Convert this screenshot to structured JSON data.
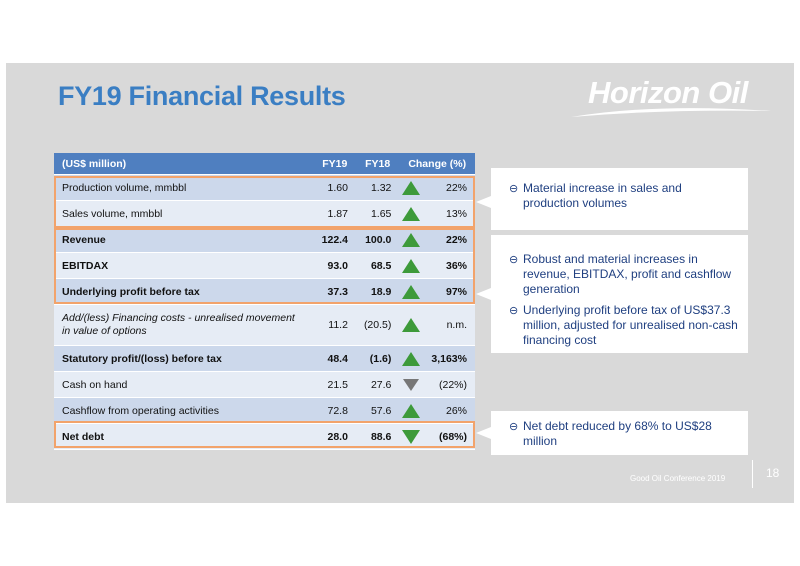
{
  "title": "FY19 Financial Results",
  "logo": {
    "text": "Horizon Oil"
  },
  "table": {
    "headers": [
      "(US$ million)",
      "FY19",
      "FY18",
      "Change (%)"
    ],
    "rows": [
      {
        "label": "Production volume, mmbbl",
        "fy19": "1.60",
        "fy18": "1.32",
        "arrow": "up",
        "change": "22%"
      },
      {
        "label": "Sales volume, mmbbl",
        "fy19": "1.87",
        "fy18": "1.65",
        "arrow": "up",
        "change": "13%"
      },
      {
        "label": "Revenue",
        "fy19": "122.4",
        "fy18": "100.0",
        "arrow": "up",
        "change": "22%"
      },
      {
        "label": "EBITDAX",
        "fy19": "93.0",
        "fy18": "68.5",
        "arrow": "up",
        "change": "36%"
      },
      {
        "label": "Underlying profit before tax",
        "fy19": "37.3",
        "fy18": "18.9",
        "arrow": "up",
        "change": "97%"
      },
      {
        "label": "Add/(less) Financing costs - unrealised movement in value of options",
        "fy19": "11.2",
        "fy18": "(20.5)",
        "arrow": "up",
        "change": "n.m."
      },
      {
        "label": "Statutory profit/(loss) before tax",
        "fy19": "48.4",
        "fy18": "(1.6)",
        "arrow": "up",
        "change": "3,163%"
      },
      {
        "label": "Cash on hand",
        "fy19": "21.5",
        "fy18": "27.6",
        "arrow": "down-grey",
        "change": "(22%)"
      },
      {
        "label": "Cashflow from operating activities",
        "fy19": "72.8",
        "fy18": "57.6",
        "arrow": "up",
        "change": "26%"
      },
      {
        "label": "Net debt",
        "fy19": "28.0",
        "fy18": "88.6",
        "arrow": "down-green",
        "change": "(68%)"
      }
    ]
  },
  "callouts": [
    {
      "bullets": [
        "Material increase in sales and production volumes"
      ]
    },
    {
      "bullets": [
        "Robust and material increases in revenue, EBITDAX, profit and cashflow generation",
        "Underlying profit before tax of US$37.3 million, adjusted for unrealised non-cash financing cost"
      ]
    },
    {
      "bullets": [
        "Net debt reduced by 68% to US$28 million"
      ]
    }
  ],
  "footer": "Good Oil Conference 2019",
  "page_number": "18",
  "colors": {
    "title": "#3a7ec3",
    "header": "#4f7fc0",
    "arrow_up": "#3d9a3a",
    "arrow_down": "#777777",
    "highlight": "#f2a36b"
  }
}
